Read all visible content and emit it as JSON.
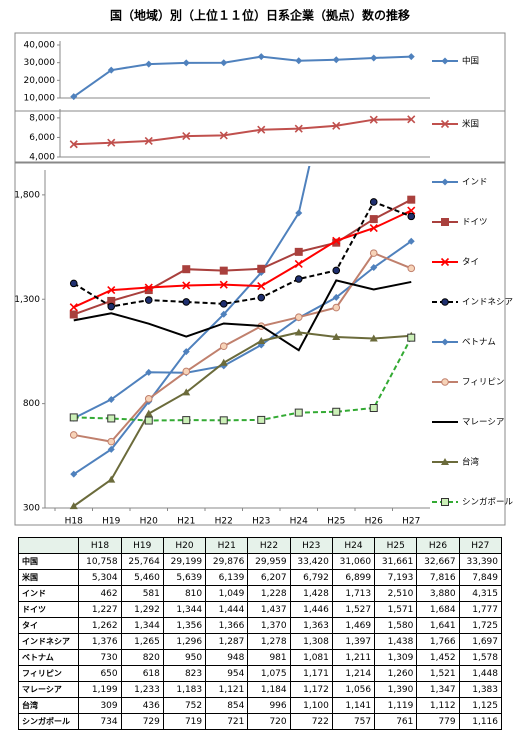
{
  "title": "国（地域）別（上位１１位）日系企業（拠点）数の推移",
  "chart_data": [
    {
      "type": "line",
      "ylim": [
        10000,
        40000
      ],
      "yticks": [
        {
          "value": 10000,
          "label": "10,000"
        },
        {
          "value": 20000,
          "label": "20,000"
        },
        {
          "value": 30000,
          "label": "30,000"
        },
        {
          "value": 40000,
          "label": "40,000"
        }
      ],
      "series": [
        {
          "name": "中国",
          "color": "#4f81bd",
          "marker": "diamond",
          "values": [
            10758,
            25764,
            29199,
            29876,
            29959,
            33420,
            31060,
            31661,
            32667,
            33390
          ],
          "value_labels": [
            "10,758",
            "25,764",
            "29,199",
            "29,876",
            "29,959",
            "33,420",
            "31,060",
            "31,661",
            "32,667",
            "33,390"
          ]
        }
      ]
    },
    {
      "type": "line",
      "ylim": [
        4000,
        8500
      ],
      "yticks": [
        {
          "value": 4000,
          "label": "4,000"
        },
        {
          "value": 6000,
          "label": "6,000"
        },
        {
          "value": 8000,
          "label": "8,000"
        }
      ],
      "series": [
        {
          "name": "米国",
          "color": "#c0504d",
          "marker": "x",
          "values": [
            5304,
            5460,
            5639,
            6139,
            6207,
            6792,
            6899,
            7193,
            7816,
            7849
          ],
          "value_labels": [
            "5,304",
            "5,460",
            "5,639",
            "6,139",
            "6,207",
            "6,792",
            "6,899",
            "7,193",
            "7,816",
            "7,849"
          ]
        }
      ]
    },
    {
      "type": "line",
      "categories": [
        "H18",
        "H19",
        "H20",
        "H21",
        "H22",
        "H23",
        "H24",
        "H25",
        "H26",
        "H27"
      ],
      "ylim": [
        300,
        1900
      ],
      "yticks": [
        300,
        800,
        {
          "value": 1300,
          "label": "1,300"
        },
        {
          "value": 1800,
          "label": "1,800"
        }
      ],
      "series": [
        {
          "name": "インド",
          "color": "#4f81bd",
          "marker": "diamond",
          "values": [
            462,
            581,
            810,
            1049,
            1228,
            1428,
            1713,
            2510,
            3880,
            4315
          ],
          "value_labels": [
            "462",
            "581",
            "810",
            "1,049",
            "1,228",
            "1,428",
            "1,713",
            "2,510",
            "3,880",
            "4,315"
          ]
        },
        {
          "name": "ドイツ",
          "color": "#a9403d",
          "marker": "square",
          "values": [
            1227,
            1292,
            1344,
            1444,
            1437,
            1446,
            1527,
            1571,
            1684,
            1777
          ],
          "value_labels": [
            "1,227",
            "1,292",
            "1,344",
            "1,444",
            "1,437",
            "1,446",
            "1,527",
            "1,571",
            "1,684",
            "1,777"
          ]
        },
        {
          "name": "タイ",
          "color": "#ff0000",
          "marker": "x",
          "values": [
            1262,
            1344,
            1356,
            1366,
            1370,
            1363,
            1469,
            1580,
            1641,
            1725
          ],
          "value_labels": [
            "1,262",
            "1,344",
            "1,356",
            "1,366",
            "1,370",
            "1,363",
            "1,469",
            "1,580",
            "1,641",
            "1,725"
          ]
        },
        {
          "name": "インドネシア",
          "color": "#000000",
          "marker": "circle",
          "dash": true,
          "values": [
            1376,
            1265,
            1296,
            1287,
            1278,
            1308,
            1397,
            1438,
            1766,
            1697
          ],
          "value_labels": [
            "1,376",
            "1,265",
            "1,296",
            "1,287",
            "1,278",
            "1,308",
            "1,397",
            "1,438",
            "1,766",
            "1,697"
          ]
        },
        {
          "name": "ベトナム",
          "color": "#4f81bd",
          "marker": "diamond",
          "values": [
            730,
            820,
            950,
            948,
            981,
            1081,
            1211,
            1309,
            1452,
            1578
          ],
          "value_labels": [
            "730",
            "820",
            "950",
            "948",
            "981",
            "1,081",
            "1,211",
            "1,309",
            "1,452",
            "1,578"
          ]
        },
        {
          "name": "フィリピン",
          "color": "#c0806d",
          "marker": "circle",
          "values": [
            650,
            618,
            823,
            954,
            1075,
            1171,
            1214,
            1260,
            1521,
            1448
          ],
          "value_labels": [
            "650",
            "618",
            "823",
            "954",
            "1,075",
            "1,171",
            "1,214",
            "1,260",
            "1,521",
            "1,448"
          ]
        },
        {
          "name": "マレーシア",
          "color": "#000000",
          "marker": "none",
          "values": [
            1199,
            1233,
            1183,
            1121,
            1184,
            1172,
            1056,
            1390,
            1347,
            1383
          ],
          "value_labels": [
            "1,199",
            "1,233",
            "1,183",
            "1,121",
            "1,184",
            "1,172",
            "1,056",
            "1,390",
            "1,347",
            "1,383"
          ]
        },
        {
          "name": "台湾",
          "color": "#6b6b3b",
          "marker": "triangle",
          "values": [
            309,
            436,
            752,
            854,
            996,
            1100,
            1141,
            1119,
            1112,
            1125
          ],
          "value_labels": [
            "309",
            "436",
            "752",
            "854",
            "996",
            "1,100",
            "1,141",
            "1,119",
            "1,112",
            "1,125"
          ]
        },
        {
          "name": "シンガポール",
          "color": "#33aa33",
          "marker": "square",
          "dash": true,
          "values": [
            734,
            729,
            719,
            721,
            720,
            722,
            757,
            761,
            779,
            1116
          ],
          "value_labels": [
            "734",
            "729",
            "719",
            "721",
            "720",
            "722",
            "757",
            "761",
            "779",
            "1,116"
          ]
        }
      ]
    }
  ]
}
